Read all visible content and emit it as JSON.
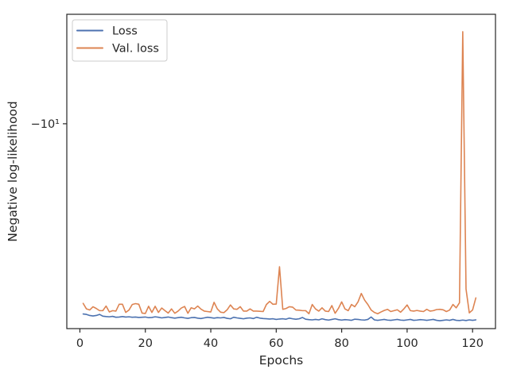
{
  "chart_data": {
    "type": "line",
    "xlabel": "Epochs",
    "ylabel": "Negative log-likelihood",
    "xlim": [
      -4,
      127
    ],
    "ylim": [
      -10.9,
      -9.55
    ],
    "yscale": "symlog",
    "x_ticks": [
      0,
      20,
      40,
      60,
      80,
      100,
      120
    ],
    "y_ticks": [
      {
        "value": -10,
        "label": "−10¹"
      }
    ],
    "grid": false,
    "legend_placement": "top-left",
    "series": [
      {
        "name": "Loss",
        "color": "#4c72b0",
        "x": [
          1,
          2,
          3,
          4,
          5,
          6,
          7,
          8,
          9,
          10,
          11,
          12,
          13,
          14,
          15,
          16,
          17,
          18,
          19,
          20,
          21,
          22,
          23,
          24,
          25,
          26,
          27,
          28,
          29,
          30,
          31,
          32,
          33,
          34,
          35,
          36,
          37,
          38,
          39,
          40,
          41,
          42,
          43,
          44,
          45,
          46,
          47,
          48,
          49,
          50,
          51,
          52,
          53,
          54,
          55,
          56,
          57,
          58,
          59,
          60,
          61,
          62,
          63,
          64,
          65,
          66,
          67,
          68,
          69,
          70,
          71,
          72,
          73,
          74,
          75,
          76,
          77,
          78,
          79,
          80,
          81,
          82,
          83,
          84,
          85,
          86,
          87,
          88,
          89,
          90,
          91,
          92,
          93,
          94,
          95,
          96,
          97,
          98,
          99,
          100,
          101,
          102,
          103,
          104,
          105,
          106,
          107,
          108,
          109,
          110,
          111,
          112,
          113,
          114,
          115,
          116,
          117,
          118,
          119,
          120,
          121
        ],
        "y": [
          -10.833,
          -10.835,
          -10.84,
          -10.842,
          -10.84,
          -10.835,
          -10.843,
          -10.845,
          -10.846,
          -10.844,
          -10.848,
          -10.847,
          -10.845,
          -10.847,
          -10.846,
          -10.848,
          -10.847,
          -10.849,
          -10.848,
          -10.847,
          -10.85,
          -10.849,
          -10.846,
          -10.848,
          -10.851,
          -10.849,
          -10.847,
          -10.85,
          -10.852,
          -10.85,
          -10.848,
          -10.851,
          -10.853,
          -10.85,
          -10.849,
          -10.852,
          -10.854,
          -10.851,
          -10.848,
          -10.85,
          -10.852,
          -10.85,
          -10.851,
          -10.849,
          -10.853,
          -10.855,
          -10.848,
          -10.851,
          -10.853,
          -10.855,
          -10.852,
          -10.851,
          -10.854,
          -10.848,
          -10.852,
          -10.854,
          -10.855,
          -10.856,
          -10.855,
          -10.858,
          -10.856,
          -10.855,
          -10.857,
          -10.852,
          -10.855,
          -10.857,
          -10.855,
          -10.849,
          -10.857,
          -10.859,
          -10.86,
          -10.858,
          -10.86,
          -10.855,
          -10.859,
          -10.861,
          -10.858,
          -10.855,
          -10.859,
          -10.861,
          -10.859,
          -10.86,
          -10.862,
          -10.857,
          -10.858,
          -10.86,
          -10.861,
          -10.858,
          -10.847,
          -10.86,
          -10.862,
          -10.86,
          -10.858,
          -10.861,
          -10.862,
          -10.86,
          -10.858,
          -10.861,
          -10.862,
          -10.86,
          -10.858,
          -10.862,
          -10.861,
          -10.859,
          -10.86,
          -10.862,
          -10.86,
          -10.858,
          -10.862,
          -10.864,
          -10.862,
          -10.86,
          -10.862,
          -10.858,
          -10.862,
          -10.863,
          -10.861,
          -10.863,
          -10.86,
          -10.862,
          -10.86
        ]
      },
      {
        "name": "Val. loss",
        "color": "#dd8452",
        "x": [
          1,
          2,
          3,
          4,
          5,
          6,
          7,
          8,
          9,
          10,
          11,
          12,
          13,
          14,
          15,
          16,
          17,
          18,
          19,
          20,
          21,
          22,
          23,
          24,
          25,
          26,
          27,
          28,
          29,
          30,
          31,
          32,
          33,
          34,
          35,
          36,
          37,
          38,
          39,
          40,
          41,
          42,
          43,
          44,
          45,
          46,
          47,
          48,
          49,
          50,
          51,
          52,
          53,
          54,
          55,
          56,
          57,
          58,
          59,
          60,
          61,
          62,
          63,
          64,
          65,
          66,
          67,
          68,
          69,
          70,
          71,
          72,
          73,
          74,
          75,
          76,
          77,
          78,
          79,
          80,
          81,
          82,
          83,
          84,
          85,
          86,
          87,
          88,
          89,
          90,
          91,
          92,
          93,
          94,
          95,
          96,
          97,
          98,
          99,
          100,
          101,
          102,
          103,
          104,
          105,
          106,
          107,
          108,
          109,
          110,
          111,
          112,
          113,
          114,
          115,
          116,
          117,
          118,
          119,
          120,
          121
        ],
        "y": [
          -10.785,
          -10.81,
          -10.815,
          -10.8,
          -10.808,
          -10.818,
          -10.818,
          -10.797,
          -10.824,
          -10.818,
          -10.82,
          -10.789,
          -10.789,
          -10.826,
          -10.815,
          -10.79,
          -10.786,
          -10.789,
          -10.829,
          -10.831,
          -10.798,
          -10.826,
          -10.798,
          -10.826,
          -10.806,
          -10.818,
          -10.829,
          -10.81,
          -10.83,
          -10.82,
          -10.806,
          -10.799,
          -10.83,
          -10.805,
          -10.81,
          -10.797,
          -10.811,
          -10.82,
          -10.822,
          -10.824,
          -10.78,
          -10.81,
          -10.825,
          -10.827,
          -10.814,
          -10.792,
          -10.81,
          -10.812,
          -10.8,
          -10.82,
          -10.82,
          -10.81,
          -10.82,
          -10.82,
          -10.821,
          -10.822,
          -10.79,
          -10.776,
          -10.789,
          -10.788,
          -10.62,
          -10.812,
          -10.808,
          -10.8,
          -10.802,
          -10.815,
          -10.816,
          -10.818,
          -10.818,
          -10.832,
          -10.79,
          -10.81,
          -10.82,
          -10.805,
          -10.82,
          -10.822,
          -10.795,
          -10.83,
          -10.808,
          -10.778,
          -10.81,
          -10.818,
          -10.79,
          -10.8,
          -10.778,
          -10.74,
          -10.77,
          -10.79,
          -10.815,
          -10.826,
          -10.832,
          -10.824,
          -10.817,
          -10.812,
          -10.822,
          -10.818,
          -10.814,
          -10.825,
          -10.81,
          -10.792,
          -10.818,
          -10.82,
          -10.817,
          -10.82,
          -10.822,
          -10.812,
          -10.82,
          -10.818,
          -10.813,
          -10.812,
          -10.814,
          -10.822,
          -10.815,
          -10.79,
          -10.805,
          -10.782,
          -9.62,
          -10.72,
          -10.828,
          -10.815,
          -10.76
        ]
      }
    ]
  }
}
